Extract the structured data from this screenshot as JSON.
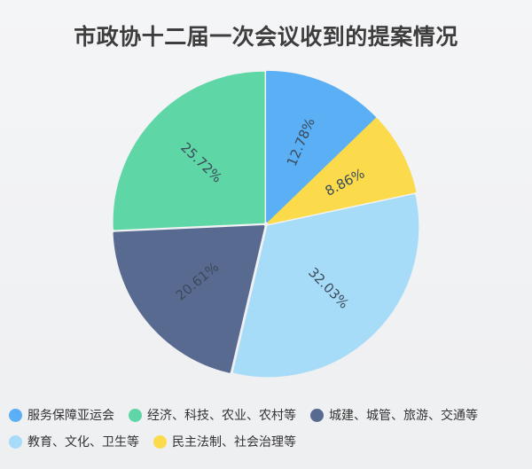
{
  "chart_data": {
    "type": "pie",
    "title": "市政协十二届一次会议收到的提案情况",
    "legend_position": "bottom",
    "slices": [
      {
        "name": "服务保障亚运会",
        "value": 12.78,
        "label": "12.78%",
        "color": "#5aaff5"
      },
      {
        "name": "民主法制、社会治理等",
        "value": 8.86,
        "label": "8.86%",
        "color": "#fbdb4b"
      },
      {
        "name": "教育、文化、卫生等",
        "value": 32.03,
        "label": "32.03%",
        "color": "#a6dcf8"
      },
      {
        "name": "城建、城管、旅游、交通等",
        "value": 20.61,
        "label": "20.61%",
        "color": "#596a91"
      },
      {
        "name": "经济、科技、农业、农村等",
        "value": 25.72,
        "label": "25.72%",
        "color": "#5fd6a5"
      }
    ],
    "legend_order": [
      "服务保障亚运会",
      "经济、科技、农业、农村等",
      "城建、城管、旅游、交通等",
      "教育、文化、卫生等",
      "民主法制、社会治理等"
    ]
  }
}
